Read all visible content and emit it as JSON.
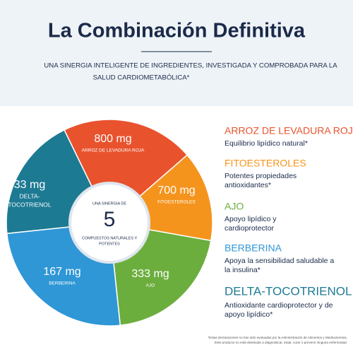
{
  "header": {
    "title": "La Combinación Definitiva",
    "subtitle": [
      "UNA SINERGIA INTELIGENTE DE INGREDIENTES, INVESTIGADA Y COMPROBADA PARA LA",
      "SALUD CARDIOMETABÓLICA*"
    ]
  },
  "wheel": {
    "segments": [
      {
        "amount": "800 mg",
        "name": [
          "ARROZ DE LEVADURA ROJA"
        ]
      },
      {
        "amount": "700 mg",
        "name": [
          "FITOESTEROLES"
        ]
      },
      {
        "amount": "333 mg",
        "name": [
          "AJO"
        ]
      },
      {
        "amount": "167 mg",
        "name": [
          "BERBERINA"
        ]
      },
      {
        "amount": "33 mg",
        "name": [
          "DELTA-",
          "TOCOTRIENOL"
        ]
      }
    ],
    "center": {
      "top": "UNA SINERGIA DE",
      "number": "5",
      "bottom": [
        "COMPUESTOS NATURALES Y",
        "POTENTES"
      ]
    }
  },
  "legend": {
    "items": [
      {
        "title": "ARROZ DE LEVADURA ROJA",
        "description": [
          "Equilibrio lipídico natural*"
        ]
      },
      {
        "title": "FITOESTEROLES",
        "description": [
          "Potentes propiedades",
          "antioxidantes*"
        ]
      },
      {
        "title": "AJO",
        "description": [
          "Apoyo lipídico y",
          "cardioprotector"
        ]
      },
      {
        "title": "BERBERINA",
        "description": [
          "Apoya la sensibilidad saludable a",
          "la insulina*"
        ]
      },
      {
        "title": "DELTA-TOCOTRIENOL",
        "description": [
          "Antioxidante cardioprotector y de",
          "apoyo lipídico*"
        ]
      }
    ]
  },
  "footnote": [
    "*Estas declaraciones no han sido evaluadas por la Administración de Alimentos y Medicamentos.",
    "Este producto no está destinado a diagnosticar, tratar, curar o prevenir ninguna enfermedad."
  ]
}
